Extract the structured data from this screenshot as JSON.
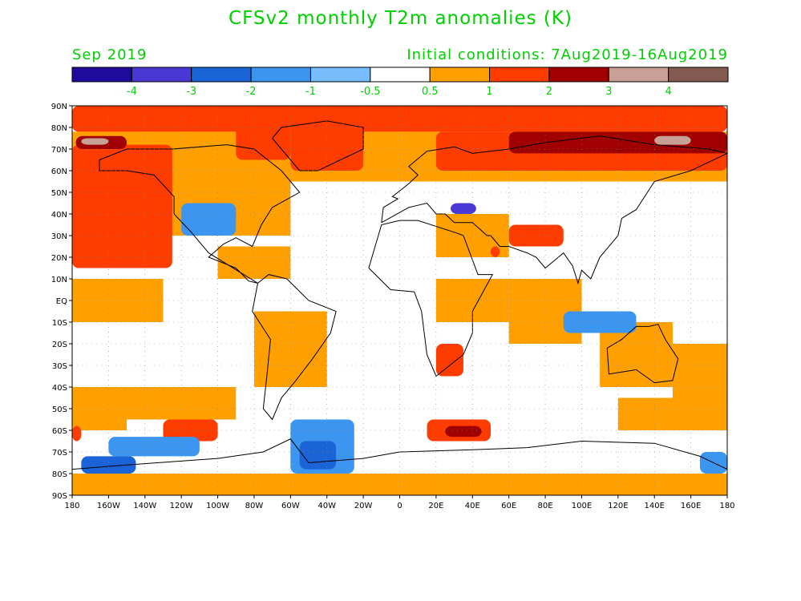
{
  "title": "CFSv2 monthly T2m anomalies (K)",
  "valid_month": "Sep 2019",
  "initial_conditions": "Initial conditions: 7Aug2019-16Aug2019",
  "colorbar": {
    "colors": [
      "#1e0a9c",
      "#4a38d4",
      "#1a64d8",
      "#3c96f0",
      "#78beff",
      "#ffffff",
      "#ffa000",
      "#ff3c00",
      "#a00000",
      "#c8a096",
      "#825a50"
    ],
    "labels": [
      "-4",
      "-3",
      "-2",
      "-1",
      "-0.5",
      "0.5",
      "1",
      "2",
      "3",
      "4"
    ],
    "label_color": "#00d000"
  },
  "map": {
    "lat_labels": [
      "90N",
      "80N",
      "70N",
      "60N",
      "50N",
      "40N",
      "30N",
      "20N",
      "10N",
      "EQ",
      "10S",
      "20S",
      "30S",
      "40S",
      "50S",
      "60S",
      "70S",
      "80S",
      "90S"
    ],
    "lon_labels": [
      "180",
      "160W",
      "140W",
      "120W",
      "100W",
      "80W",
      "60W",
      "40W",
      "20W",
      "0",
      "20E",
      "40E",
      "60E",
      "80E",
      "100E",
      "120E",
      "140E",
      "160E",
      "180"
    ],
    "regions": [
      {
        "lon": [
          -180,
          180
        ],
        "lat": [
          78,
          90
        ],
        "level": 7
      },
      {
        "lon": [
          -180,
          -125
        ],
        "lat": [
          15,
          72
        ],
        "level": 7
      },
      {
        "lon": [
          -175,
          -140
        ],
        "lat": [
          30,
          60
        ],
        "level": 7
      },
      {
        "lon": [
          -90,
          -60
        ],
        "lat": [
          65,
          82
        ],
        "level": 7
      },
      {
        "lon": [
          -60,
          -20
        ],
        "lat": [
          60,
          80
        ],
        "level": 7
      },
      {
        "lon": [
          20,
          180
        ],
        "lat": [
          60,
          78
        ],
        "level": 7
      },
      {
        "lon": [
          60,
          180
        ],
        "lat": [
          68,
          78
        ],
        "level": 8
      },
      {
        "lon": [
          -178,
          -150
        ],
        "lat": [
          70,
          76
        ],
        "level": 8
      },
      {
        "lon": [
          -175,
          -160
        ],
        "lat": [
          72,
          75
        ],
        "level": 9
      },
      {
        "lon": [
          140,
          160
        ],
        "lat": [
          72,
          76
        ],
        "level": 9
      },
      {
        "lon": [
          -180,
          -175
        ],
        "lat": [
          -65,
          -58
        ],
        "level": 7
      },
      {
        "lon": [
          -130,
          -100
        ],
        "lat": [
          -65,
          -55
        ],
        "level": 7
      },
      {
        "lon": [
          15,
          50
        ],
        "lat": [
          -65,
          -55
        ],
        "level": 7
      },
      {
        "lon": [
          25,
          45
        ],
        "lat": [
          -63,
          -58
        ],
        "level": 8
      },
      {
        "lon": [
          60,
          90
        ],
        "lat": [
          25,
          35
        ],
        "level": 7
      },
      {
        "lon": [
          50,
          55
        ],
        "lat": [
          20,
          25
        ],
        "level": 7
      },
      {
        "lon": [
          20,
          35
        ],
        "lat": [
          -35,
          -20
        ],
        "level": 7
      },
      {
        "lon": [
          -160,
          -110
        ],
        "lat": [
          -72,
          -63
        ],
        "level": 3
      },
      {
        "lon": [
          -175,
          -145
        ],
        "lat": [
          -80,
          -72
        ],
        "level": 2
      },
      {
        "lon": [
          -60,
          -25
        ],
        "lat": [
          -80,
          -55
        ],
        "level": 3
      },
      {
        "lon": [
          -55,
          -35
        ],
        "lat": [
          -78,
          -65
        ],
        "level": 2
      },
      {
        "lon": [
          165,
          180
        ],
        "lat": [
          -80,
          -70
        ],
        "level": 3
      },
      {
        "lon": [
          -120,
          -90
        ],
        "lat": [
          30,
          45
        ],
        "level": 3
      },
      {
        "lon": [
          90,
          130
        ],
        "lat": [
          -15,
          -5
        ],
        "level": 3
      },
      {
        "lon": [
          28,
          42
        ],
        "lat": [
          40,
          45
        ],
        "level": 1
      }
    ]
  }
}
